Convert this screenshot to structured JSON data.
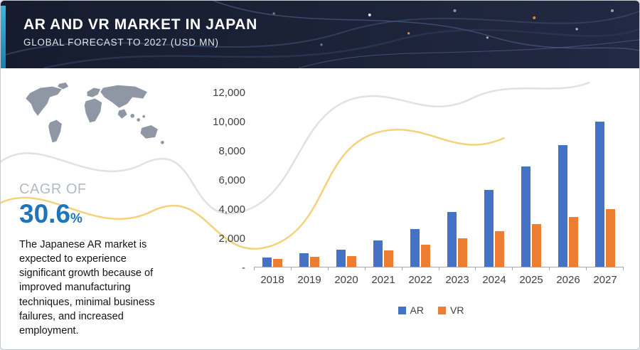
{
  "header": {
    "title": "AR AND VR MARKET IN JAPAN",
    "subtitle": "GLOBAL FORECAST TO 2027 (USD MN)"
  },
  "sidebar": {
    "cagr_label": "CAGR OF",
    "cagr_value": "30.6",
    "cagr_unit": "%",
    "description": "The Japanese AR market is expected to experience significant growth because of improved manufacturing techniques, minimal business failures, and increased employment."
  },
  "chart_data": {
    "type": "bar",
    "title": "",
    "units": "USD MN",
    "categories": [
      "2018",
      "2019",
      "2020",
      "2021",
      "2022",
      "2023",
      "2024",
      "2025",
      "2026",
      "2027"
    ],
    "series": [
      {
        "name": "AR",
        "color": "#4472c4",
        "values": [
          650,
          950,
          1150,
          1800,
          2600,
          3750,
          5250,
          6900,
          8350,
          9950
        ]
      },
      {
        "name": "VR",
        "color": "#ed7d31",
        "values": [
          520,
          680,
          750,
          1100,
          1500,
          1950,
          2450,
          2950,
          3400,
          3950
        ]
      }
    ],
    "ylim": [
      0,
      12000
    ],
    "ytick_step": 2000,
    "ytick_labels": [
      "-",
      "2,000",
      "4,000",
      "6,000",
      "8,000",
      "10,000",
      "12,000"
    ],
    "legend_position": "bottom",
    "grid": false
  },
  "colors": {
    "accent_teal": "#2fa8cc",
    "cagr_blue": "#1f75bb",
    "header_bg": "#1b2237",
    "ar_blue": "#4472c4",
    "vr_orange": "#ed7d31",
    "map_gray": "#8f97a5",
    "deco_yellow": "#f2c14e",
    "deco_gray": "#d8d8d8"
  }
}
